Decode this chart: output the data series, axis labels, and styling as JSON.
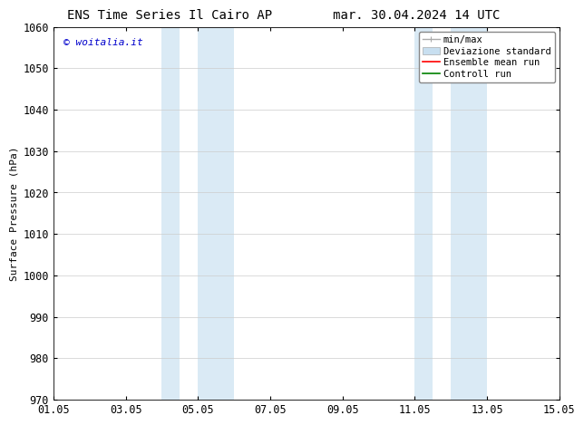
{
  "title": "ENS Time Series Il Cairo AP",
  "title_right": "mar. 30.04.2024 14 UTC",
  "ylabel": "Surface Pressure (hPa)",
  "ylim": [
    970,
    1060
  ],
  "yticks": [
    970,
    980,
    990,
    1000,
    1010,
    1020,
    1030,
    1040,
    1050,
    1060
  ],
  "xtick_labels": [
    "01.05",
    "03.05",
    "05.05",
    "07.05",
    "09.05",
    "11.05",
    "13.05",
    "15.05"
  ],
  "xtick_positions": [
    0,
    2,
    4,
    6,
    8,
    10,
    12,
    14
  ],
  "x_total_days": 14,
  "shaded_bands": [
    {
      "x_start": 3.0,
      "x_end": 3.5
    },
    {
      "x_start": 4.0,
      "x_end": 5.0
    },
    {
      "x_start": 10.0,
      "x_end": 10.5
    },
    {
      "x_start": 11.0,
      "x_end": 12.0
    }
  ],
  "shaded_color": "#daeaf5",
  "watermark_text": "© woitalia.it",
  "watermark_color": "#0000cc",
  "legend_entries": [
    {
      "label": "min/max",
      "color": "#aaaaaa",
      "lw": 1.0
    },
    {
      "label": "Deviazione standard",
      "color": "#c8dff0",
      "lw": 5
    },
    {
      "label": "Ensemble mean run",
      "color": "#ff0000",
      "lw": 1.2
    },
    {
      "label": "Controll run",
      "color": "#008000",
      "lw": 1.2
    }
  ],
  "background_color": "#ffffff",
  "grid_color": "#cccccc",
  "title_fontsize": 10,
  "axis_fontsize": 8,
  "tick_fontsize": 8.5,
  "legend_fontsize": 7.5
}
